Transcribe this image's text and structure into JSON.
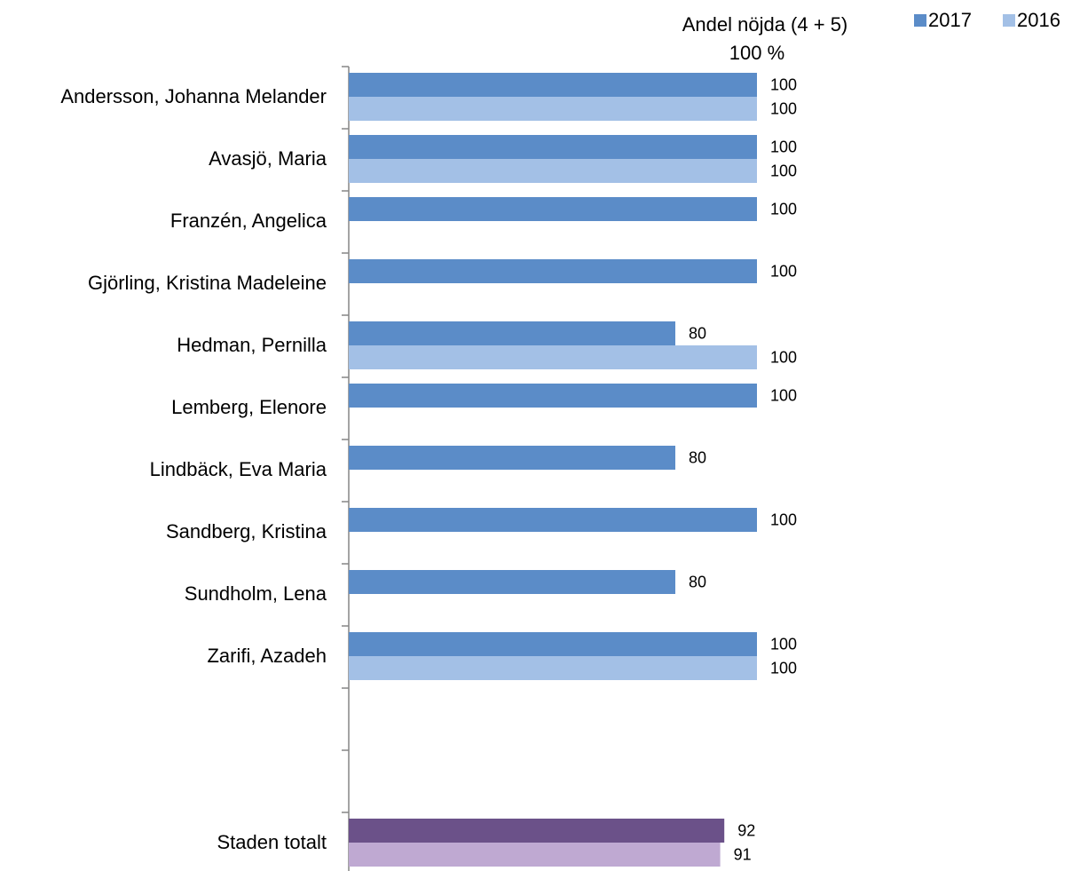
{
  "chart_data": {
    "type": "bar",
    "orientation": "horizontal",
    "axis_label": "Andel nöjda (4 + 5)",
    "categories": [
      "Andersson, Johanna Melander",
      "Avasjö, Maria",
      "Franzén, Angelica",
      "Gjörling, Kristina Madeleine",
      "Hedman, Pernilla",
      "Lemberg, Elenore",
      "Lindbäck, Eva Maria",
      "Sandberg, Kristina",
      "Sundholm, Lena",
      "Zarifi, Azadeh",
      null,
      null,
      "Staden totalt"
    ],
    "series": [
      {
        "name": "2017",
        "color": "#5b8cc8",
        "values": [
          100,
          100,
          100,
          100,
          80,
          100,
          80,
          100,
          80,
          100,
          null,
          null,
          92
        ],
        "colors": [
          "#5b8cc8",
          "#5b8cc8",
          "#5b8cc8",
          "#5b8cc8",
          "#5b8cc8",
          "#5b8cc8",
          "#5b8cc8",
          "#5b8cc8",
          "#5b8cc8",
          "#5b8cc8",
          null,
          null,
          "#6b5189"
        ]
      },
      {
        "name": "2016",
        "color": "#a3c0e6",
        "values": [
          100,
          100,
          null,
          null,
          100,
          null,
          null,
          null,
          null,
          100,
          null,
          null,
          91
        ],
        "colors": [
          "#a3c0e6",
          "#a3c0e6",
          null,
          null,
          "#a3c0e6",
          null,
          null,
          null,
          null,
          "#a3c0e6",
          null,
          null,
          "#bfa9d2"
        ]
      }
    ],
    "xlim": [
      0,
      100
    ],
    "xticks": [
      {
        "value": 100,
        "label": "100 %"
      }
    ],
    "legend": "top-right"
  }
}
